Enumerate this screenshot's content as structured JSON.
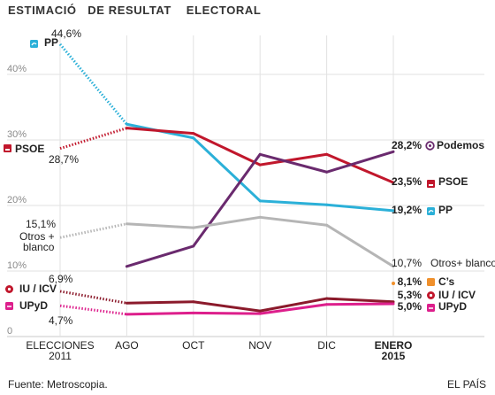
{
  "header": {
    "title": "ESTIMACIÓ   DE RESULTAT    ELECTORAL"
  },
  "footer": {
    "source": "Fuente: Metroscopia.",
    "brand": "EL PAÍS"
  },
  "chart_data": {
    "type": "line",
    "title": "ESTIMACIÓ   DE RESULTAT    ELECTORAL",
    "xlabel": "",
    "ylabel": "",
    "ylim": [
      0,
      50
    ],
    "grid": true,
    "y_ticks": [
      {
        "value": 0,
        "label": "0"
      },
      {
        "value": 10,
        "label": "10%"
      },
      {
        "value": 20,
        "label": "20%"
      },
      {
        "value": 30,
        "label": "30%"
      },
      {
        "value": 40,
        "label": "40%"
      }
    ],
    "categories": [
      {
        "lines": [
          "ELECCIONES",
          "2011"
        ],
        "bold": false
      },
      {
        "lines": [
          "AGO"
        ],
        "bold": false
      },
      {
        "lines": [
          "OCT"
        ],
        "bold": false
      },
      {
        "lines": [
          "NOV"
        ],
        "bold": false
      },
      {
        "lines": [
          "DIC"
        ],
        "bold": false
      },
      {
        "lines": [
          "ENERO",
          "2015"
        ],
        "bold": true
      }
    ],
    "series": [
      {
        "name": "PP",
        "color": "#2bb0d8",
        "values": [
          44.6,
          32.4,
          30.3,
          20.7,
          20.1,
          19.2
        ],
        "start_label": "44,6%",
        "end_label": "19,2%"
      },
      {
        "name": "PSOE",
        "color": "#c1172c",
        "values": [
          28.7,
          31.8,
          31.0,
          26.2,
          27.8,
          23.5
        ],
        "start_label": "28,7%",
        "end_label": "23,5%"
      },
      {
        "name": "Podemos",
        "color": "#6a2a6e",
        "values": [
          null,
          10.7,
          13.8,
          27.8,
          25.1,
          28.2
        ],
        "start_label": "",
        "end_label": "28,2%"
      },
      {
        "name": "Otros + blanco",
        "end_name": "Otros+ blanco",
        "color": "#b5b5b5",
        "values": [
          15.1,
          17.2,
          16.6,
          18.2,
          17.0,
          10.7
        ],
        "start_label": "15,1%",
        "end_label": "10,7%"
      },
      {
        "name": "IU / ICV",
        "color": "#8b1a2b",
        "values": [
          6.9,
          5.1,
          5.3,
          3.9,
          5.8,
          5.3
        ],
        "start_label": "6,9%",
        "end_label": "5,3%"
      },
      {
        "name": "UPyD",
        "color": "#dd1f8c",
        "values": [
          4.7,
          3.4,
          3.6,
          3.5,
          4.9,
          5.0
        ],
        "start_label": "4,7%",
        "end_label": "5,0%"
      },
      {
        "name": "C’s",
        "color": "#f0902c",
        "values": [
          null,
          null,
          null,
          null,
          null,
          8.1
        ],
        "start_label": "",
        "end_label": "8,1%"
      }
    ]
  }
}
